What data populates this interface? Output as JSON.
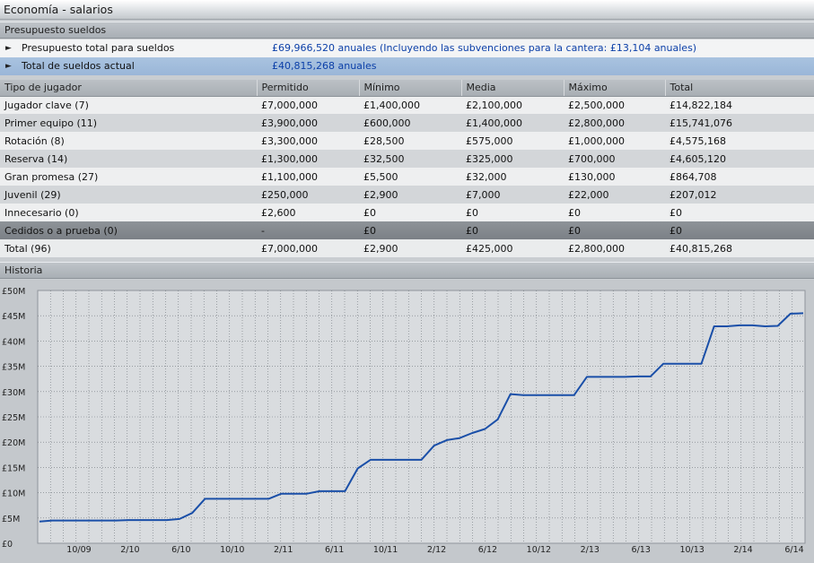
{
  "window": {
    "title": "Economía - salarios"
  },
  "budget": {
    "header": "Presupuesto sueldos",
    "rows": [
      {
        "label": "Presupuesto total para sueldos",
        "value": "£69,966,520 anuales (Incluyendo las subvenciones para la cantera: £13,104 anuales)"
      },
      {
        "label": "Total de sueldos actual",
        "value": "£40,815,268 anuales"
      }
    ]
  },
  "table": {
    "columns": [
      "Tipo de jugador",
      "Permitido",
      "Mínimo",
      "Media",
      "Máximo",
      "Total"
    ],
    "rows": [
      [
        "Jugador clave (7)",
        "£7,000,000",
        "£1,400,000",
        "£2,100,000",
        "£2,500,000",
        "£14,822,184"
      ],
      [
        "Primer equipo (11)",
        "£3,900,000",
        "£600,000",
        "£1,400,000",
        "£2,800,000",
        "£15,741,076"
      ],
      [
        "Rotación (8)",
        "£3,300,000",
        "£28,500",
        "£575,000",
        "£1,000,000",
        "£4,575,168"
      ],
      [
        "Reserva (14)",
        "£1,300,000",
        "£32,500",
        "£325,000",
        "£700,000",
        "£4,605,120"
      ],
      [
        "Gran promesa (27)",
        "£1,100,000",
        "£5,500",
        "£32,000",
        "£130,000",
        "£864,708"
      ],
      [
        "Juvenil (29)",
        "£250,000",
        "£2,900",
        "£7,000",
        "£22,000",
        "£207,012"
      ],
      [
        "Innecesario (0)",
        "£2,600",
        "£0",
        "£0",
        "£0",
        "£0"
      ],
      [
        "Cedidos o a prueba (0)",
        "-",
        "£0",
        "£0",
        "£0",
        "£0"
      ],
      [
        "Total  (96)",
        "£7,000,000",
        "£2,900",
        "£425,000",
        "£2,800,000",
        "£40,815,268"
      ]
    ]
  },
  "history": {
    "header": "Historia",
    "chart_data": {
      "type": "line",
      "title": "",
      "xlabel": "",
      "ylabel": "",
      "grid": true,
      "ylim": [
        0,
        50
      ],
      "yticks": [
        "£0",
        "£5M",
        "£10M",
        "£15M",
        "£20M",
        "£25M",
        "£30M",
        "£35M",
        "£40M",
        "£45M",
        "£50M"
      ],
      "xticks": [
        "10/09",
        "2/10",
        "6/10",
        "10/10",
        "2/11",
        "6/11",
        "10/11",
        "2/12",
        "6/12",
        "10/12",
        "2/13",
        "6/13",
        "10/13",
        "2/14",
        "6/14"
      ],
      "line_color": "#1a4fa8",
      "series": [
        {
          "values": [
            4.3,
            4.5,
            4.5,
            4.5,
            4.5,
            4.5,
            4.5,
            4.6,
            4.6,
            4.6,
            4.6,
            4.8,
            6.0,
            8.8,
            8.8,
            8.8,
            8.8,
            8.8,
            8.8,
            9.8,
            9.8,
            9.8,
            10.3,
            10.3,
            10.3,
            14.8,
            16.5,
            16.5,
            16.5,
            16.5,
            16.5,
            19.3,
            20.4,
            20.8,
            21.8,
            22.6,
            24.5,
            29.5,
            29.3,
            29.3,
            29.3,
            29.3,
            29.3,
            32.9,
            32.9,
            32.9,
            32.9,
            33.0,
            33.0,
            35.5,
            35.5,
            35.5,
            35.5,
            42.9,
            42.9,
            43.1,
            43.1,
            42.9,
            43.0,
            45.4,
            45.5
          ]
        }
      ]
    }
  }
}
